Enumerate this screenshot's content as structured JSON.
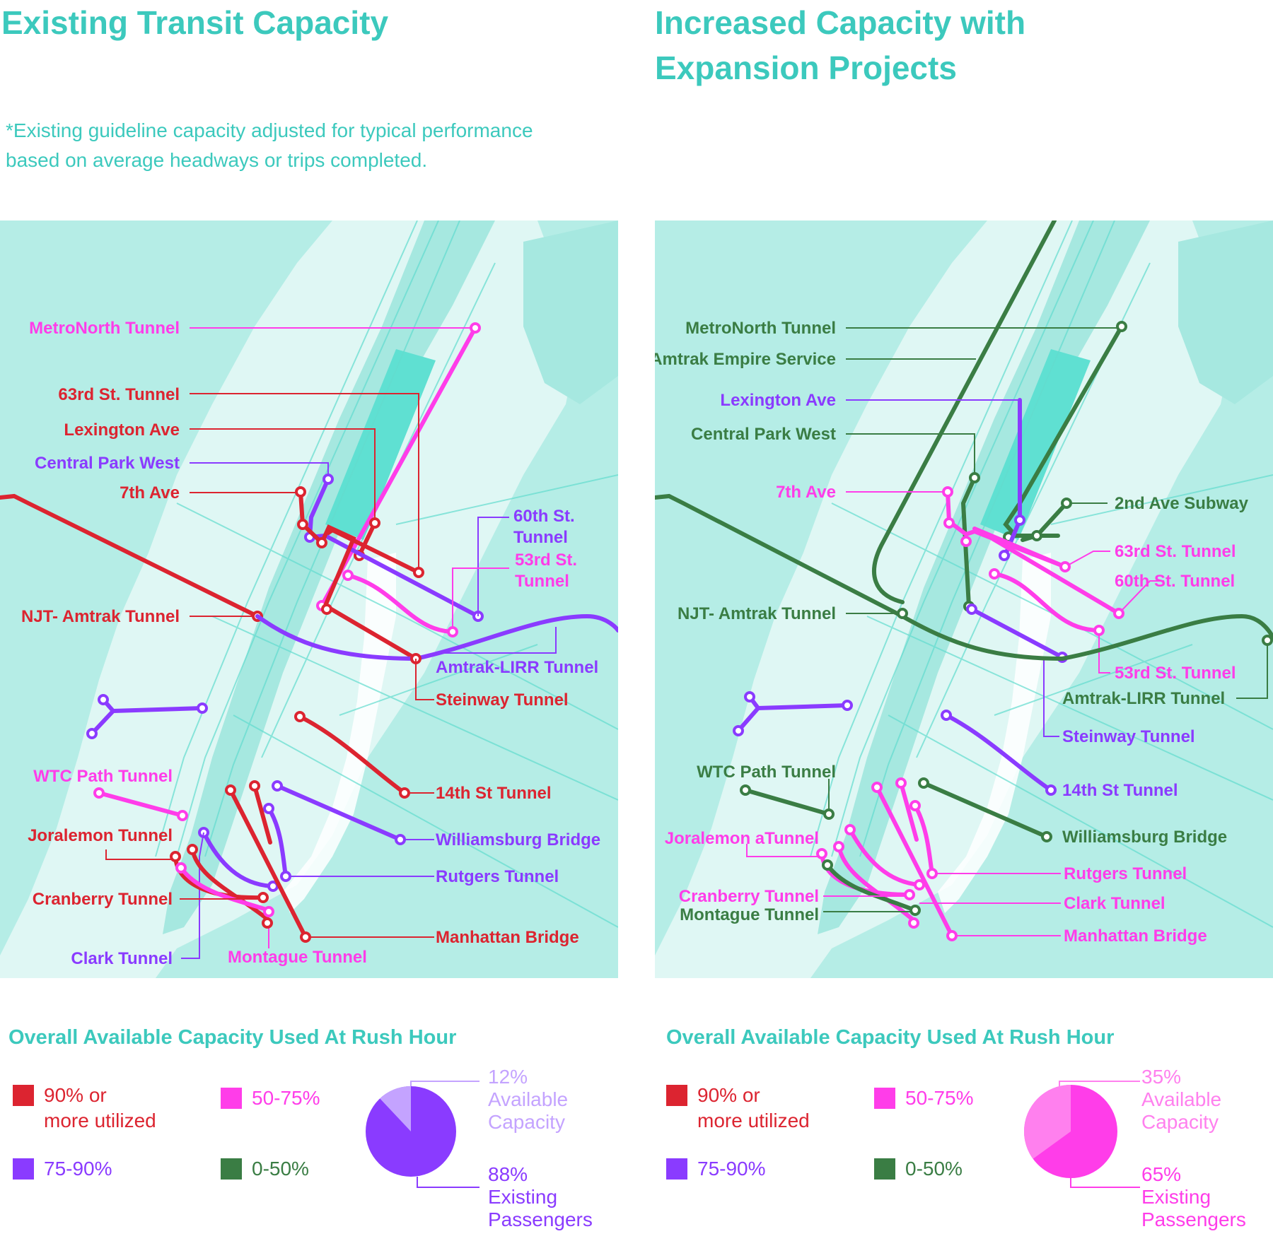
{
  "left": {
    "title": "Existing Transit Capacity",
    "note_line1": "*Existing guideline capacity adjusted for typical performance",
    "note_line2": "based on average headways or trips completed.",
    "labels": {
      "metronorth": "MetroNorth Tunnel",
      "t63": "63rd St. Tunnel",
      "lex": "Lexington Ave",
      "cpw": "Central Park West",
      "ave7": "7th Ave",
      "t60a": "60th St.",
      "t60b": "Tunnel",
      "t53a": "53rd St.",
      "t53b": "Tunnel",
      "njt": "NJT- Amtrak Tunnel",
      "lirr": "Amtrak-LIRR Tunnel",
      "steinway": "Steinway Tunnel",
      "wtc": "WTC Path Tunnel",
      "t14": "14th St Tunnel",
      "joralemon": "Joralemon Tunnel",
      "williamsburg": "Williamsburg Bridge",
      "rutgers": "Rutgers Tunnel",
      "cranberry": "Cranberry Tunnel",
      "manhattan": "Manhattan Bridge",
      "clark": "Clark Tunnel",
      "montague": "Montague Tunnel"
    },
    "legend": {
      "title": "Overall Available Capacity Used At Rush Hour",
      "r90a": "90% or",
      "r90b": "more utilized",
      "r50": "50-75%",
      "r75": "75-90%",
      "r0": "0-50%"
    },
    "pie": {
      "available_pct": 12,
      "available_a": "12%",
      "available_b": "Available",
      "available_c": "Capacity",
      "existing_a": "88%",
      "existing_b": "Existing",
      "existing_c": "Passengers"
    }
  },
  "right": {
    "title_line1": "Increased Capacity with",
    "title_line2": "Expansion Projects",
    "labels": {
      "metronorth": "MetroNorth Tunnel",
      "empire": "Amtrak Empire Service",
      "lex": "Lexington Ave",
      "cpw": "Central Park West",
      "ave7": "7th Ave",
      "ave2": "2nd Ave Subway",
      "t63": "63rd St. Tunnel",
      "t60": "60th St. Tunnel",
      "njt": "NJT- Amtrak Tunnel",
      "t53": "53rd St. Tunnel",
      "lirr": "Amtrak-LIRR Tunnel",
      "steinway": "Steinway Tunnel",
      "wtc": "WTC Path Tunnel",
      "t14": "14th St Tunnel",
      "joralemon": "Joralemon aTunnel",
      "williamsburg": "Williamsburg Bridge",
      "rutgers": "Rutgers Tunnel",
      "cranberry": "Cranberry Tunnel",
      "clark": "Clark Tunnel",
      "montague": "Montague Tunnel",
      "manhattan": "Manhattan Bridge"
    },
    "legend": {
      "title": "Overall Available Capacity Used At Rush Hour",
      "r90a": "90% or",
      "r90b": "more utilized",
      "r50": "50-75%",
      "r75": "75-90%",
      "r0": "0-50%"
    },
    "pie": {
      "available_pct": 35,
      "available_a": "35%",
      "available_b": "Available",
      "available_c": "Capacity",
      "existing_a": "65%",
      "existing_b": "Existing",
      "existing_c": "Passengers"
    }
  },
  "colors": {
    "teal_title": "#3cc9bd",
    "red": "#dc2430",
    "magenta": "#ff3de9",
    "purple": "#8a3bff",
    "green": "#3a7d44",
    "map_water": "#dff7f4",
    "map_land": "#b5ede6",
    "map_park": "#5fe0d2"
  }
}
